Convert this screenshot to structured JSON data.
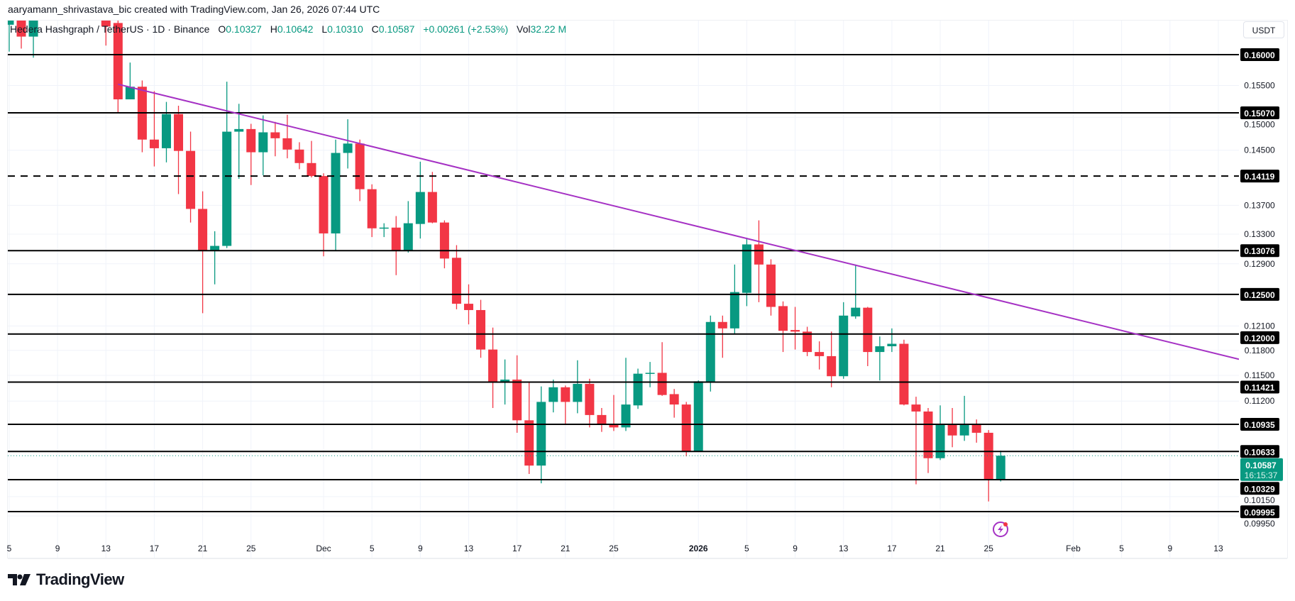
{
  "attribution": "aaryamann_shrivastava_bic created with TradingView.com, Jan 26, 2026 07:44 UTC",
  "legend": {
    "symbol": "Hedera Hashgraph / TetherUS · 1D · Binance",
    "o_label": "O",
    "o": "0.10327",
    "h_label": "H",
    "h": "0.10642",
    "l_label": "L",
    "l": "0.10310",
    "c_label": "C",
    "c": "0.10587",
    "change": "+0.00261 (+2.53%)",
    "vol_label": "Vol",
    "vol": "32.22 M"
  },
  "currency_button": "USDT",
  "brand": "TradingView",
  "colors": {
    "up": "#089981",
    "down": "#F23645",
    "trendline": "#A531C4",
    "level": "#000000",
    "grid": "#F0F3FA"
  },
  "icons": {
    "alert": "lightning-icon"
  },
  "chart_data": {
    "type": "candlestick",
    "scale": "log",
    "ylim": [
      0.09995,
      0.16
    ],
    "xlim": [
      "2025-11-05",
      "2026-02-15"
    ],
    "grid": true,
    "y_ticks": [
      "0.15500",
      "0.15000",
      "0.14500",
      "0.13700",
      "0.13300",
      "0.12900",
      "0.12100",
      "0.11800",
      "0.11500",
      "0.11200",
      "0.10150",
      "0.09950"
    ],
    "x_ticks": [
      {
        "date": "2025-11-05",
        "label": "5"
      },
      {
        "date": "2025-11-09",
        "label": "9"
      },
      {
        "date": "2025-11-13",
        "label": "13"
      },
      {
        "date": "2025-11-17",
        "label": "17"
      },
      {
        "date": "2025-11-21",
        "label": "21"
      },
      {
        "date": "2025-11-25",
        "label": "25"
      },
      {
        "date": "2025-12-01",
        "label": "Dec"
      },
      {
        "date": "2025-12-05",
        "label": "5"
      },
      {
        "date": "2025-12-09",
        "label": "9"
      },
      {
        "date": "2025-12-13",
        "label": "13"
      },
      {
        "date": "2025-12-17",
        "label": "17"
      },
      {
        "date": "2025-12-21",
        "label": "21"
      },
      {
        "date": "2025-12-25",
        "label": "25"
      },
      {
        "date": "2026-01-01",
        "label": "2026",
        "bold": true
      },
      {
        "date": "2026-01-05",
        "label": "5"
      },
      {
        "date": "2026-01-09",
        "label": "9"
      },
      {
        "date": "2026-01-13",
        "label": "13"
      },
      {
        "date": "2026-01-17",
        "label": "17"
      },
      {
        "date": "2026-01-21",
        "label": "21"
      },
      {
        "date": "2026-01-25",
        "label": "25"
      },
      {
        "date": "2026-02-01",
        "label": "Feb"
      },
      {
        "date": "2026-02-05",
        "label": "5"
      },
      {
        "date": "2026-02-09",
        "label": "9"
      },
      {
        "date": "2026-02-13",
        "label": "13"
      }
    ],
    "levels": [
      {
        "price": 0.16,
        "label": "0.16000"
      },
      {
        "price": 0.1507,
        "label": "0.15070"
      },
      {
        "price": 0.14119,
        "label": "0.14119",
        "dashed": true
      },
      {
        "price": 0.13076,
        "label": "0.13076"
      },
      {
        "price": 0.125,
        "label": "0.12500"
      },
      {
        "price": 0.12,
        "label": "0.12000"
      },
      {
        "price": 0.11421,
        "label": "0.11421"
      },
      {
        "price": 0.10935,
        "label": "0.10935"
      },
      {
        "price": 0.10633,
        "label": "0.10633"
      },
      {
        "price": 0.10329,
        "label": "0.10329"
      },
      {
        "price": 0.09995,
        "label": "0.09995"
      }
    ],
    "trendline": [
      {
        "date": "2025-11-14",
        "price": 0.1552
      },
      {
        "date": "2026-01-06",
        "price": 0.132
      }
    ],
    "last_price": {
      "price": 0.10587,
      "label": "0.10587",
      "countdown": "16:15:37"
    },
    "candles": [
      [
        "2025-11-05",
        0.165,
        0.175,
        0.1605,
        0.17
      ],
      [
        "2025-11-06",
        0.17,
        0.172,
        0.161,
        0.163
      ],
      [
        "2025-11-07",
        0.163,
        0.172,
        0.1595,
        0.17
      ],
      [
        "2025-11-13",
        0.167,
        0.17,
        0.1615,
        0.1647
      ],
      [
        "2025-11-14",
        0.1653,
        0.166,
        0.1507,
        0.1528
      ],
      [
        "2025-11-15",
        0.1528,
        0.1587,
        0.1528,
        0.1548
      ],
      [
        "2025-11-16",
        0.1548,
        0.1558,
        0.1447,
        0.1466
      ],
      [
        "2025-11-17",
        0.1466,
        0.1541,
        0.1426,
        0.1453
      ],
      [
        "2025-11-18",
        0.1453,
        0.1524,
        0.1432,
        0.1505
      ],
      [
        "2025-11-19",
        0.1505,
        0.1518,
        0.1386,
        0.1449
      ],
      [
        "2025-11-20",
        0.1449,
        0.1478,
        0.1346,
        0.1365
      ],
      [
        "2025-11-21",
        0.1365,
        0.139,
        0.1226,
        0.1308
      ],
      [
        "2025-11-22",
        0.1308,
        0.1334,
        0.1263,
        0.1314
      ],
      [
        "2025-11-23",
        0.1314,
        0.1556,
        0.1311,
        0.1478
      ],
      [
        "2025-11-24",
        0.1478,
        0.1521,
        0.1408,
        0.1482
      ],
      [
        "2025-11-25",
        0.1482,
        0.149,
        0.1399,
        0.1447
      ],
      [
        "2025-11-26",
        0.1447,
        0.1503,
        0.1413,
        0.1477
      ],
      [
        "2025-11-27",
        0.1477,
        0.1493,
        0.1441,
        0.1468
      ],
      [
        "2025-11-28",
        0.1468,
        0.1504,
        0.1438,
        0.1451
      ],
      [
        "2025-11-29",
        0.1451,
        0.1462,
        0.1422,
        0.1431
      ],
      [
        "2025-11-30",
        0.1431,
        0.1464,
        0.141,
        0.1412
      ],
      [
        "2025-12-01",
        0.1412,
        0.1416,
        0.13,
        0.1331
      ],
      [
        "2025-12-02",
        0.1331,
        0.1466,
        0.1308,
        0.1446
      ],
      [
        "2025-12-03",
        0.1446,
        0.1497,
        0.1423,
        0.146
      ],
      [
        "2025-12-04",
        0.146,
        0.1466,
        0.1376,
        0.1393
      ],
      [
        "2025-12-05",
        0.1393,
        0.14,
        0.1326,
        0.1338
      ],
      [
        "2025-12-06",
        0.1338,
        0.1345,
        0.1326,
        0.1339
      ],
      [
        "2025-12-07",
        0.1339,
        0.1355,
        0.1275,
        0.1307
      ],
      [
        "2025-12-08",
        0.1308,
        0.1376,
        0.1305,
        0.1345
      ],
      [
        "2025-12-09",
        0.1344,
        0.1433,
        0.1324,
        0.1389
      ],
      [
        "2025-12-10",
        0.1389,
        0.1418,
        0.1345,
        0.1346
      ],
      [
        "2025-12-11",
        0.1346,
        0.1349,
        0.1284,
        0.1297
      ],
      [
        "2025-12-12",
        0.1298,
        0.1315,
        0.1231,
        0.1238
      ],
      [
        "2025-12-13",
        0.1238,
        0.1263,
        0.1212,
        0.123
      ],
      [
        "2025-12-14",
        0.123,
        0.1243,
        0.1171,
        0.1181
      ],
      [
        "2025-12-15",
        0.1181,
        0.1208,
        0.1112,
        0.1142
      ],
      [
        "2025-12-16",
        0.1142,
        0.1169,
        0.1116,
        0.1145
      ],
      [
        "2025-12-17",
        0.1145,
        0.1174,
        0.1084,
        0.1098
      ],
      [
        "2025-12-18",
        0.1098,
        0.1142,
        0.1039,
        0.1048
      ],
      [
        "2025-12-19",
        0.1048,
        0.1137,
        0.1029,
        0.1119
      ],
      [
        "2025-12-20",
        0.1119,
        0.1145,
        0.1107,
        0.1136
      ],
      [
        "2025-12-21",
        0.1136,
        0.1138,
        0.1094,
        0.1119
      ],
      [
        "2025-12-22",
        0.1119,
        0.1168,
        0.1106,
        0.114
      ],
      [
        "2025-12-23",
        0.114,
        0.1146,
        0.109,
        0.1104
      ],
      [
        "2025-12-24",
        0.1104,
        0.1112,
        0.1085,
        0.1094
      ],
      [
        "2025-12-25",
        0.1094,
        0.1127,
        0.1086,
        0.109
      ],
      [
        "2025-12-26",
        0.109,
        0.1171,
        0.1086,
        0.1116
      ],
      [
        "2025-12-27",
        0.1115,
        0.1158,
        0.1111,
        0.1152
      ],
      [
        "2025-12-28",
        0.1152,
        0.1166,
        0.1136,
        0.1153
      ],
      [
        "2025-12-29",
        0.1153,
        0.119,
        0.1126,
        0.1127
      ],
      [
        "2025-12-30",
        0.1128,
        0.1134,
        0.1101,
        0.1116
      ],
      [
        "2025-12-31",
        0.1116,
        0.1119,
        0.1058,
        0.1063
      ],
      [
        "2026-01-01",
        0.1063,
        0.1144,
        0.1063,
        0.1143
      ],
      [
        "2026-01-02",
        0.1142,
        0.1223,
        0.1131,
        0.1215
      ],
      [
        "2026-01-03",
        0.1215,
        0.1223,
        0.1171,
        0.1207
      ],
      [
        "2026-01-04",
        0.1207,
        0.1289,
        0.12,
        0.1253
      ],
      [
        "2026-01-05",
        0.1252,
        0.1325,
        0.1235,
        0.1316
      ],
      [
        "2026-01-06",
        0.1316,
        0.1349,
        0.124,
        0.1289
      ],
      [
        "2026-01-07",
        0.1289,
        0.1296,
        0.1223,
        0.1234
      ],
      [
        "2026-01-08",
        0.1235,
        0.1241,
        0.1178,
        0.1204
      ],
      [
        "2026-01-09",
        0.1205,
        0.1234,
        0.1181,
        0.1203
      ],
      [
        "2026-01-10",
        0.1203,
        0.1209,
        0.1173,
        0.1178
      ],
      [
        "2026-01-11",
        0.1178,
        0.1191,
        0.1157,
        0.1173
      ],
      [
        "2026-01-12",
        0.1173,
        0.1203,
        0.1136,
        0.1149
      ],
      [
        "2026-01-13",
        0.1149,
        0.124,
        0.1146,
        0.1223
      ],
      [
        "2026-01-14",
        0.1222,
        0.1289,
        0.1219,
        0.1233
      ],
      [
        "2026-01-15",
        0.1233,
        0.1234,
        0.1161,
        0.1178
      ],
      [
        "2026-01-16",
        0.1178,
        0.1197,
        0.1144,
        0.1185
      ],
      [
        "2026-01-17",
        0.1185,
        0.1207,
        0.1178,
        0.1188
      ],
      [
        "2026-01-18",
        0.1188,
        0.1193,
        0.1115,
        0.1116
      ],
      [
        "2026-01-19",
        0.1116,
        0.1125,
        0.1028,
        0.1108
      ],
      [
        "2026-01-20",
        0.1108,
        0.1112,
        0.104,
        0.1056
      ],
      [
        "2026-01-21",
        0.1056,
        0.1115,
        0.1054,
        0.1093
      ],
      [
        "2026-01-22",
        0.1093,
        0.1112,
        0.1068,
        0.1081
      ],
      [
        "2026-01-23",
        0.1081,
        0.1126,
        0.1075,
        0.1093
      ],
      [
        "2026-01-24",
        0.1093,
        0.1099,
        0.1073,
        0.1084
      ],
      [
        "2026-01-25",
        0.1084,
        0.1087,
        0.101,
        0.10327
      ],
      [
        "2026-01-26",
        0.10327,
        0.10642,
        0.1031,
        0.10587
      ]
    ]
  }
}
